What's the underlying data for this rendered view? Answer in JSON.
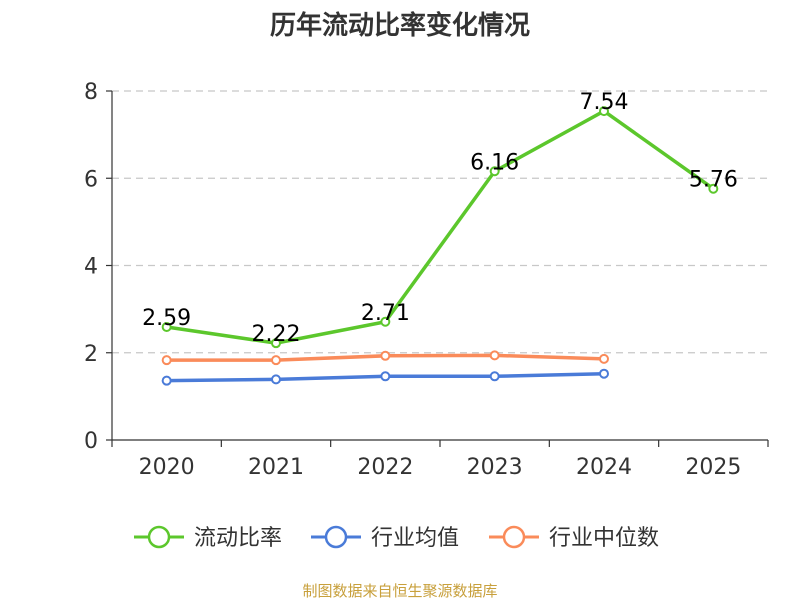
{
  "chart_data": {
    "type": "line",
    "title": "历年流动比率变化情况",
    "categories": [
      "2020",
      "2021",
      "2022",
      "2023",
      "2024",
      "2025"
    ],
    "ylim": [
      0,
      8
    ],
    "y_ticks": [
      0,
      2,
      4,
      6,
      8
    ],
    "grid": true,
    "legend_position": "bottom",
    "series": [
      {
        "name": "流动比率",
        "color": "#5cc72c",
        "values": [
          2.59,
          2.22,
          2.71,
          6.16,
          7.54,
          5.76
        ],
        "show_labels": true
      },
      {
        "name": "行业均值",
        "color": "#4a7bd8",
        "values": [
          1.36,
          1.39,
          1.46,
          1.46,
          1.52,
          null
        ],
        "show_labels": false
      },
      {
        "name": "行业中位数",
        "color": "#fa8b5a",
        "values": [
          1.83,
          1.83,
          1.93,
          1.94,
          1.86,
          null
        ],
        "show_labels": false
      }
    ],
    "data_labels": [
      "2.59",
      "2.22",
      "2.71",
      "6.16",
      "7.54",
      "5.76"
    ]
  },
  "footer": {
    "source": "制图数据来自恒生聚源数据库"
  }
}
